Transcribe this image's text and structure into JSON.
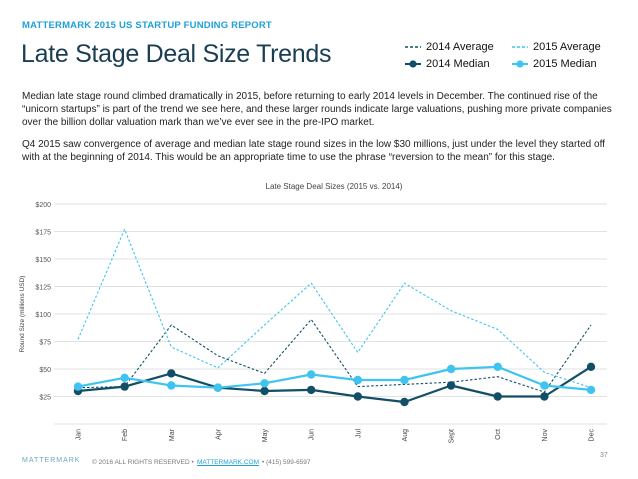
{
  "header": {
    "kicker": "MATTERMARK 2015 US STARTUP FUNDING REPORT",
    "title": "Late Stage Deal Size Trends"
  },
  "legend": [
    {
      "label": "2014 Average",
      "series": "2014 Average"
    },
    {
      "label": "2015 Average",
      "series": "2015 Average"
    },
    {
      "label": "2014 Median",
      "series": "2014 Median"
    },
    {
      "label": "2015 Median",
      "series": "2015 Median"
    }
  ],
  "body": {
    "paragraph_1": "Median late stage round climbed dramatically in 2015, before returning to early 2014 levels in December. The continued rise of the “unicorn startups” is part of the trend we see here, and these larger rounds indicate large valuations, pushing more private companies over the billion dollar valuation mark than we’ve ever see in the pre-IPO market.",
    "paragraph_2": "Q4 2015 saw convergence of average and median late stage round sizes in the low $30 millions, just under the level they started off with at the beginning of 2014. This would be an appropriate time to use the phrase “reversion to the mean” for this stage."
  },
  "chart_data": {
    "type": "line",
    "title": "Late Stage Deal Sizes (2015 vs. 2014)",
    "xlabel": "",
    "ylabel": "Round Size (millions USD)",
    "categories": [
      "Jan",
      "Feb",
      "Mar",
      "Apr",
      "May",
      "Jun",
      "Jul",
      "Aug",
      "Sept",
      "Oct",
      "Nov",
      "Dec"
    ],
    "ylim": [
      0,
      200
    ],
    "yticks": [
      25,
      50,
      75,
      100,
      125,
      150,
      175,
      200
    ],
    "ytick_labels": [
      "$25",
      "$50",
      "$75",
      "$100",
      "$125",
      "$150",
      "$175",
      "$200"
    ],
    "grid": true,
    "series": [
      {
        "name": "2014 Average",
        "color": "#124f66",
        "style": "dashed",
        "marker": false,
        "values": [
          33,
          34,
          90,
          62,
          46,
          95,
          34,
          36,
          38,
          43,
          29,
          90
        ]
      },
      {
        "name": "2015 Average",
        "color": "#3fc4f0",
        "style": "dashed",
        "marker": false,
        "values": [
          77,
          177,
          70,
          51,
          90,
          128,
          65,
          128,
          103,
          86,
          47,
          33
        ]
      },
      {
        "name": "2014 Median",
        "color": "#124f66",
        "style": "solid",
        "marker": true,
        "values": [
          30,
          34,
          46,
          33,
          30,
          31,
          25,
          20,
          35,
          25,
          25,
          52
        ]
      },
      {
        "name": "2015 Median",
        "color": "#3fc4f0",
        "style": "solid",
        "marker": true,
        "values": [
          34,
          42,
          35,
          33,
          37,
          45,
          40,
          40,
          50,
          52,
          35,
          31
        ]
      }
    ]
  },
  "footer": {
    "logo": "MATTERMARK",
    "copyright": "© 2016 ALL RIGHTS RESERVED  •",
    "link": "MATTERMARK.COM",
    "phone": "•   (415) 599-6597",
    "page_number": "37"
  }
}
